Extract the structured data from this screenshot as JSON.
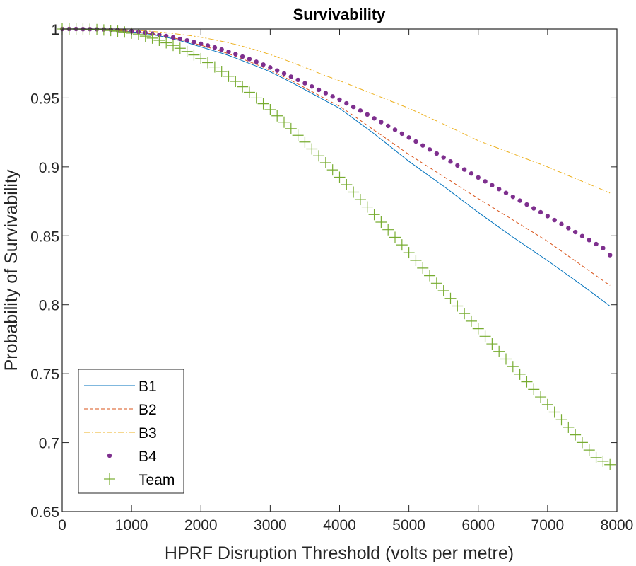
{
  "chart_data": {
    "type": "line",
    "title": "Survivability",
    "xlabel": "HPRF Disruption Threshold (volts per metre)",
    "ylabel": "Probability of Survivability",
    "xlim": [
      0,
      8000
    ],
    "ylim": [
      0.65,
      1
    ],
    "grid": false,
    "legend_position": "bottom-left",
    "x_ticks": [
      0,
      1000,
      2000,
      3000,
      4000,
      5000,
      6000,
      7000,
      8000
    ],
    "x_tick_labels": [
      "0",
      "1000",
      "2000",
      "3000",
      "4000",
      "5000",
      "6000",
      "7000",
      "8000"
    ],
    "y_ticks": [
      0.65,
      0.7,
      0.75,
      0.8,
      0.85,
      0.9,
      0.95,
      1
    ],
    "y_tick_labels": [
      "0.65",
      "0.7",
      "0.75",
      "0.8",
      "0.85",
      "0.9",
      "0.95",
      "1"
    ],
    "x": [
      0,
      100,
      200,
      300,
      400,
      500,
      600,
      700,
      800,
      900,
      1000,
      1100,
      1200,
      1300,
      1400,
      1500,
      1600,
      1700,
      1800,
      1900,
      2000,
      2100,
      2200,
      2300,
      2400,
      2500,
      2600,
      2700,
      2800,
      2900,
      3000,
      3100,
      3200,
      3300,
      3400,
      3500,
      3600,
      3700,
      3800,
      3900,
      4000,
      4100,
      4200,
      4300,
      4400,
      4500,
      4600,
      4700,
      4800,
      4900,
      5000,
      5100,
      5200,
      5300,
      5400,
      5500,
      5600,
      5700,
      5800,
      5900,
      6000,
      6100,
      6200,
      6300,
      6400,
      6500,
      6600,
      6700,
      6800,
      6900,
      7000,
      7100,
      7200,
      7300,
      7400,
      7500,
      7600,
      7700,
      7800,
      7900
    ],
    "series": [
      {
        "name": "B1",
        "style": "solid",
        "color": "#0072bd",
        "values": [
          1,
          1,
          1,
          0.9999,
          0.9998,
          0.9997,
          0.9995,
          0.9992,
          0.9989,
          0.9985,
          0.998,
          0.9974,
          0.9967,
          0.9959,
          0.995,
          0.994,
          0.9928,
          0.9915,
          0.9901,
          0.9886,
          0.987,
          0.9855,
          0.984,
          0.9825,
          0.9808,
          0.979,
          0.977,
          0.975,
          0.9731,
          0.9711,
          0.969,
          0.9665,
          0.964,
          0.9614,
          0.9587,
          0.956,
          0.9533,
          0.9506,
          0.9479,
          0.9452,
          0.9425,
          0.9388,
          0.9351,
          0.9314,
          0.9277,
          0.924,
          0.92,
          0.916,
          0.912,
          0.908,
          0.904,
          0.9004,
          0.8968,
          0.8932,
          0.8896,
          0.886,
          0.8822,
          0.8784,
          0.8746,
          0.8708,
          0.867,
          0.8634,
          0.8598,
          0.8562,
          0.8526,
          0.849,
          0.8456,
          0.8422,
          0.8388,
          0.8354,
          0.832,
          0.8284,
          0.8248,
          0.8212,
          0.8176,
          0.814,
          0.8103,
          0.8065,
          0.8028,
          0.799
        ]
      },
      {
        "name": "B2",
        "style": "dashed",
        "color": "#d95319",
        "values": [
          1,
          1,
          1,
          0.9999,
          0.9998,
          0.9997,
          0.9995,
          0.9993,
          0.999,
          0.9986,
          0.9982,
          0.9977,
          0.9971,
          0.9964,
          0.9956,
          0.9947,
          0.9936,
          0.9924,
          0.9911,
          0.9897,
          0.9882,
          0.9868,
          0.9853,
          0.9837,
          0.982,
          0.9802,
          0.9783,
          0.9763,
          0.9743,
          0.9722,
          0.97,
          0.9676,
          0.9652,
          0.9627,
          0.9601,
          0.9574,
          0.9547,
          0.952,
          0.9493,
          0.9466,
          0.944,
          0.9406,
          0.9372,
          0.9337,
          0.9301,
          0.9265,
          0.9231,
          0.9196,
          0.916,
          0.9125,
          0.909,
          0.9058,
          0.9026,
          0.8994,
          0.8962,
          0.893,
          0.8898,
          0.8866,
          0.8834,
          0.8802,
          0.877,
          0.8739,
          0.8708,
          0.8677,
          0.8646,
          0.8615,
          0.8584,
          0.8553,
          0.8522,
          0.8491,
          0.846,
          0.8424,
          0.8389,
          0.8353,
          0.8318,
          0.8282,
          0.8246,
          0.8211,
          0.8175,
          0.814
        ]
      },
      {
        "name": "B3",
        "style": "dashdot",
        "color": "#edb120",
        "values": [
          1,
          1,
          1,
          1,
          0.9999,
          0.9999,
          0.9998,
          0.9997,
          0.9996,
          0.9994,
          0.9992,
          0.9989,
          0.9986,
          0.9982,
          0.9978,
          0.9973,
          0.9967,
          0.9961,
          0.9955,
          0.9948,
          0.994,
          0.9931,
          0.9921,
          0.9911,
          0.99,
          0.9888,
          0.9875,
          0.9861,
          0.9847,
          0.9831,
          0.9815,
          0.9797,
          0.9779,
          0.976,
          0.9741,
          0.9721,
          0.9701,
          0.9681,
          0.9661,
          0.9643,
          0.9625,
          0.9605,
          0.9585,
          0.9565,
          0.9545,
          0.9525,
          0.9505,
          0.9485,
          0.9465,
          0.9445,
          0.9425,
          0.9402,
          0.9379,
          0.9356,
          0.9333,
          0.931,
          0.9286,
          0.9262,
          0.9238,
          0.9214,
          0.919,
          0.9171,
          0.9152,
          0.9133,
          0.9114,
          0.9095,
          0.9076,
          0.9057,
          0.9038,
          0.9019,
          0.9,
          0.8979,
          0.8958,
          0.8937,
          0.8916,
          0.8895,
          0.8874,
          0.8853,
          0.8832,
          0.881
        ]
      },
      {
        "name": "B4",
        "style": "dots",
        "color": "#7e2f8e",
        "values": [
          1,
          1,
          1,
          0.9999,
          0.9999,
          0.9998,
          0.9997,
          0.9995,
          0.9992,
          0.9988,
          0.9984,
          0.9979,
          0.9973,
          0.9966,
          0.9958,
          0.9949,
          0.9939,
          0.9928,
          0.9917,
          0.9905,
          0.9893,
          0.988,
          0.9866,
          0.9851,
          0.9835,
          0.9818,
          0.98,
          0.9782,
          0.9762,
          0.9742,
          0.9721,
          0.9699,
          0.9677,
          0.9654,
          0.9631,
          0.9607,
          0.9583,
          0.9559,
          0.9535,
          0.9511,
          0.9487,
          0.9461,
          0.9435,
          0.9408,
          0.938,
          0.9352,
          0.9325,
          0.9297,
          0.9269,
          0.9241,
          0.9213,
          0.9184,
          0.9155,
          0.9126,
          0.9097,
          0.9068,
          0.9039,
          0.901,
          0.8981,
          0.8952,
          0.8923,
          0.8895,
          0.8867,
          0.8839,
          0.8811,
          0.8783,
          0.8755,
          0.8727,
          0.8699,
          0.8671,
          0.8643,
          0.8614,
          0.8585,
          0.8556,
          0.8527,
          0.8498,
          0.8469,
          0.844,
          0.8411,
          0.836
        ]
      },
      {
        "name": "Team",
        "style": "plus",
        "color": "#77ac30",
        "values": [
          1,
          1,
          1,
          0.9999,
          0.9998,
          0.9996,
          0.9993,
          0.9989,
          0.9984,
          0.9978,
          0.997,
          0.996,
          0.9948,
          0.9934,
          0.9918,
          0.99,
          0.9881,
          0.986,
          0.9837,
          0.9812,
          0.9785,
          0.9756,
          0.9725,
          0.9692,
          0.9657,
          0.962,
          0.9581,
          0.9541,
          0.95,
          0.9458,
          0.9415,
          0.937,
          0.9324,
          0.9277,
          0.9229,
          0.918,
          0.913,
          0.908,
          0.903,
          0.8978,
          0.8925,
          0.8871,
          0.8817,
          0.8763,
          0.8709,
          0.8654,
          0.8599,
          0.8544,
          0.8489,
          0.8434,
          0.8378,
          0.8322,
          0.8266,
          0.8211,
          0.8156,
          0.8101,
          0.8046,
          0.7991,
          0.7936,
          0.7881,
          0.7826,
          0.7771,
          0.7716,
          0.7661,
          0.7606,
          0.7551,
          0.7496,
          0.7441,
          0.7386,
          0.7331,
          0.7276,
          0.7221,
          0.7166,
          0.7111,
          0.7056,
          0.7001,
          0.6946,
          0.6891,
          0.6865,
          0.684
        ]
      }
    ]
  }
}
